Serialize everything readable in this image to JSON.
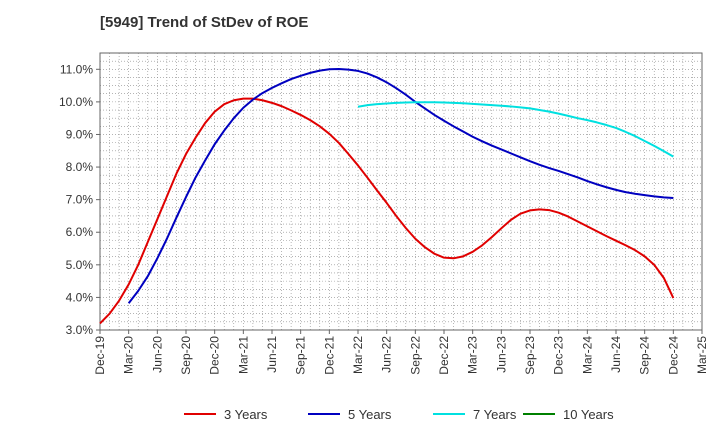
{
  "chart_data": {
    "type": "line",
    "title": "[5949]  Trend of StDev of ROE",
    "xlabel": "",
    "ylabel": "",
    "x_ticks": [
      "Dec-19",
      "Mar-20",
      "Jun-20",
      "Sep-20",
      "Dec-20",
      "Mar-21",
      "Jun-21",
      "Sep-21",
      "Dec-21",
      "Mar-22",
      "Jun-22",
      "Sep-22",
      "Dec-22",
      "Mar-23",
      "Jun-23",
      "Sep-23",
      "Dec-23",
      "Mar-24",
      "Jun-24",
      "Sep-24",
      "Dec-24",
      "Mar-25"
    ],
    "y_ticks": [
      "3.0%",
      "4.0%",
      "5.0%",
      "6.0%",
      "7.0%",
      "8.0%",
      "9.0%",
      "10.0%",
      "11.0%"
    ],
    "ylim": [
      3.0,
      11.5
    ],
    "grid": true,
    "legend_position": "bottom",
    "series": [
      {
        "name": "3 Years",
        "color": "#e00000",
        "x": [
          "Dec-19",
          "Jan-20",
          "Feb-20",
          "Mar-20",
          "Apr-20",
          "May-20",
          "Jun-20",
          "Jul-20",
          "Aug-20",
          "Sep-20",
          "Oct-20",
          "Nov-20",
          "Dec-20",
          "Jan-21",
          "Feb-21",
          "Mar-21",
          "Apr-21",
          "May-21",
          "Jun-21",
          "Jul-21",
          "Aug-21",
          "Sep-21",
          "Oct-21",
          "Nov-21",
          "Dec-21",
          "Jan-22",
          "Feb-22",
          "Mar-22",
          "Apr-22",
          "May-22",
          "Jun-22",
          "Jul-22",
          "Aug-22",
          "Sep-22",
          "Oct-22",
          "Nov-22",
          "Dec-22",
          "Jan-23",
          "Feb-23",
          "Mar-23",
          "Apr-23",
          "May-23",
          "Jun-23",
          "Jul-23",
          "Aug-23",
          "Sep-23",
          "Oct-23",
          "Nov-23",
          "Dec-23",
          "Jan-24",
          "Feb-24",
          "Mar-24",
          "Apr-24",
          "May-24",
          "Jun-24",
          "Jul-24",
          "Aug-24",
          "Sep-24",
          "Oct-24",
          "Nov-24",
          "Dec-24"
        ],
        "values": [
          3.2,
          3.5,
          3.9,
          4.4,
          5.0,
          5.7,
          6.4,
          7.1,
          7.8,
          8.4,
          8.9,
          9.35,
          9.7,
          9.93,
          10.05,
          10.1,
          10.1,
          10.05,
          9.97,
          9.87,
          9.74,
          9.6,
          9.44,
          9.25,
          9.02,
          8.74,
          8.4,
          8.05,
          7.67,
          7.28,
          6.9,
          6.5,
          6.13,
          5.8,
          5.54,
          5.34,
          5.22,
          5.2,
          5.26,
          5.4,
          5.6,
          5.85,
          6.12,
          6.38,
          6.57,
          6.67,
          6.7,
          6.68,
          6.6,
          6.48,
          6.33,
          6.18,
          6.03,
          5.88,
          5.74,
          5.6,
          5.45,
          5.26,
          5.0,
          4.6,
          3.98
        ]
      },
      {
        "name": "5 Years",
        "color": "#0000c0",
        "x": [
          "Mar-20",
          "Apr-20",
          "May-20",
          "Jun-20",
          "Jul-20",
          "Aug-20",
          "Sep-20",
          "Oct-20",
          "Nov-20",
          "Dec-20",
          "Jan-21",
          "Feb-21",
          "Mar-21",
          "Apr-21",
          "May-21",
          "Jun-21",
          "Jul-21",
          "Aug-21",
          "Sep-21",
          "Oct-21",
          "Nov-21",
          "Dec-21",
          "Jan-22",
          "Feb-22",
          "Mar-22",
          "Apr-22",
          "May-22",
          "Jun-22",
          "Jul-22",
          "Aug-22",
          "Sep-22",
          "Oct-22",
          "Nov-22",
          "Dec-22",
          "Jan-23",
          "Feb-23",
          "Mar-23",
          "Apr-23",
          "May-23",
          "Jun-23",
          "Jul-23",
          "Aug-23",
          "Sep-23",
          "Oct-23",
          "Nov-23",
          "Dec-23",
          "Jan-24",
          "Feb-24",
          "Mar-24",
          "Apr-24",
          "May-24",
          "Jun-24",
          "Jul-24",
          "Aug-24",
          "Sep-24",
          "Oct-24",
          "Nov-24",
          "Dec-24"
        ],
        "values": [
          3.82,
          4.2,
          4.65,
          5.2,
          5.8,
          6.45,
          7.08,
          7.68,
          8.2,
          8.7,
          9.12,
          9.5,
          9.82,
          10.07,
          10.27,
          10.43,
          10.57,
          10.7,
          10.8,
          10.89,
          10.96,
          11.0,
          11.01,
          10.99,
          10.95,
          10.87,
          10.75,
          10.6,
          10.42,
          10.22,
          10.0,
          9.8,
          9.6,
          9.42,
          9.25,
          9.09,
          8.93,
          8.79,
          8.66,
          8.54,
          8.42,
          8.3,
          8.18,
          8.07,
          7.97,
          7.88,
          7.78,
          7.68,
          7.57,
          7.47,
          7.38,
          7.3,
          7.23,
          7.18,
          7.14,
          7.1,
          7.07,
          7.05
        ]
      },
      {
        "name": "7 Years",
        "color": "#00e0e0",
        "x": [
          "Mar-22",
          "Apr-22",
          "May-22",
          "Jun-22",
          "Jul-22",
          "Aug-22",
          "Sep-22",
          "Oct-22",
          "Nov-22",
          "Dec-22",
          "Jan-23",
          "Feb-23",
          "Mar-23",
          "Apr-23",
          "May-23",
          "Jun-23",
          "Jul-23",
          "Aug-23",
          "Sep-23",
          "Oct-23",
          "Nov-23",
          "Dec-23",
          "Jan-24",
          "Feb-24",
          "Mar-24",
          "Apr-24",
          "May-24",
          "Jun-24",
          "Jul-24",
          "Aug-24",
          "Sep-24",
          "Oct-24",
          "Nov-24",
          "Dec-24"
        ],
        "values": [
          9.85,
          9.9,
          9.93,
          9.95,
          9.97,
          9.98,
          9.99,
          9.99,
          9.99,
          9.98,
          9.97,
          9.96,
          9.94,
          9.92,
          9.9,
          9.88,
          9.86,
          9.83,
          9.8,
          9.75,
          9.7,
          9.64,
          9.57,
          9.5,
          9.44,
          9.37,
          9.29,
          9.2,
          9.08,
          8.95,
          8.8,
          8.65,
          8.49,
          8.32
        ]
      },
      {
        "name": "10 Years",
        "color": "#008000",
        "x": [],
        "values": []
      }
    ]
  }
}
